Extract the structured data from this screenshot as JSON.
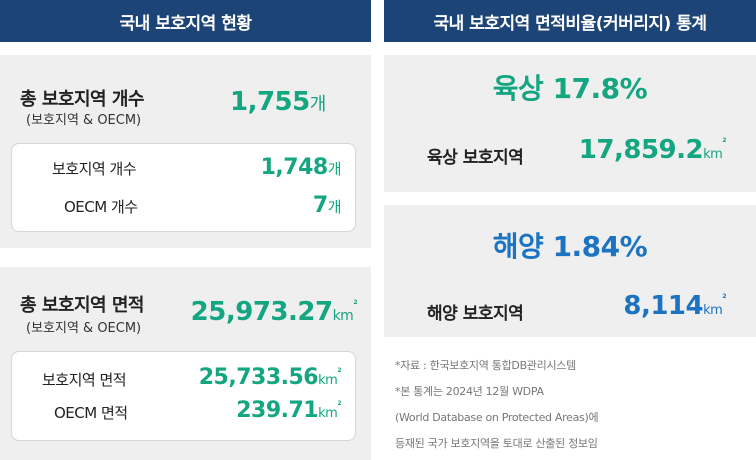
{
  "left_header": "국내 보호지역 현황",
  "right_header": "국내 보호지역 면적비율(커버리지) 통계",
  "count_panel": {
    "title": "총 보호지역 개수",
    "subtitle": "(보호지역 & OECM)",
    "total": "1,755",
    "unit": "개",
    "rows": [
      {
        "label": "보호지역 개수",
        "value": "1,748",
        "unit": "개"
      },
      {
        "label": "OECM 개수",
        "value": "7",
        "unit": "개"
      }
    ]
  },
  "area_panel": {
    "title": "총 보호지역 면적",
    "subtitle": "(보호지역 & OECM)",
    "total": "25,973.27",
    "unit": "km",
    "unit_sup": "2",
    "rows": [
      {
        "label": "보호지역 면적",
        "value": "25,733.56",
        "unit": "km",
        "unit_sup": "2"
      },
      {
        "label": "OECM 면적",
        "value": "239.71",
        "unit": "km",
        "unit_sup": "2"
      }
    ]
  },
  "land_panel": {
    "ratio_label": "육상",
    "ratio_value": "17.8%",
    "area_label": "육상 보호지역",
    "area_value": "17,859.2",
    "unit": "km",
    "unit_sup": "2"
  },
  "marine_panel": {
    "ratio_label": "해양",
    "ratio_value": "1.84%",
    "area_label": "해양 보호지역",
    "area_value": "8,114",
    "unit": "km",
    "unit_sup": "2"
  },
  "notes": [
    "*자료 : 한국보호지역 통합DB관리시스템",
    "*본 통계는 2024년 12월 WDPA",
    "(World Database on Protected Areas)에",
    "등재된 국가 보호지역을 토대로 산출된 정보임"
  ],
  "colors": {
    "header_bg": "#1d4476",
    "green": "#14a581",
    "blue": "#1b73c2",
    "panel_bg": "#efefef"
  }
}
